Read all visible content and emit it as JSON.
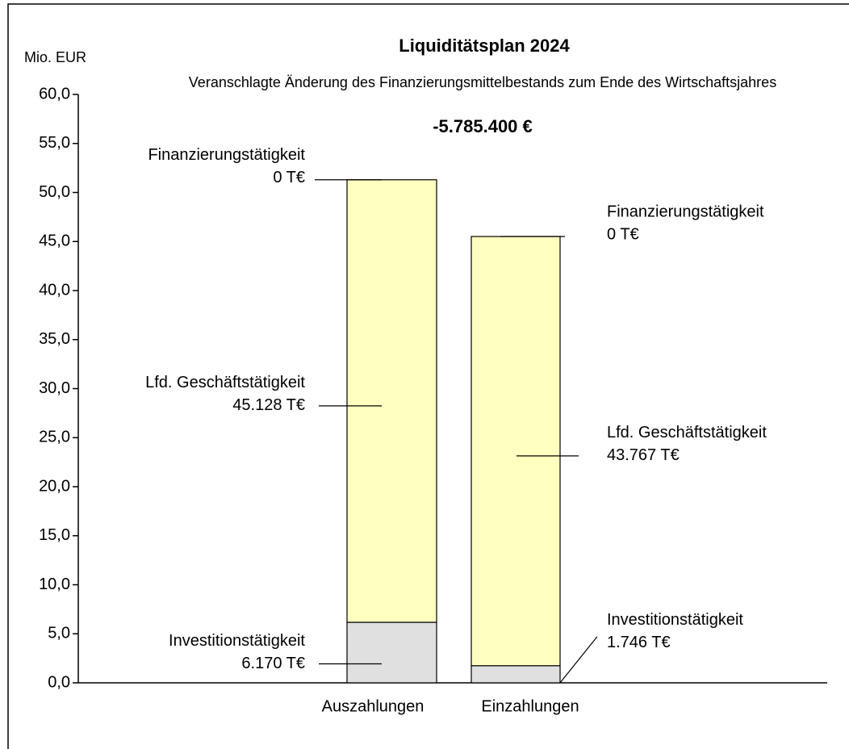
{
  "chart_data": {
    "type": "stacked_bar",
    "title": "Liquiditätsplan 2024",
    "subtitle": "Veranschlagte Änderung des Finanzierungsmittelbestands zum Ende des Wirtschaftsjahres",
    "annotation": "-5.785.400 €",
    "y_label": "Mio. EUR",
    "categories": [
      "Auszahlungen",
      "Einzahlungen"
    ],
    "series": [
      {
        "name": "Investitionstätigkeit",
        "color": "#e0e0e0",
        "values": [
          6.17,
          1.746
        ],
        "value_labels": [
          "6.170 T€",
          "1.746 T€"
        ]
      },
      {
        "name": "Lfd. Geschäftstätigkeit",
        "color": "#ffffc0",
        "values": [
          45.128,
          43.767
        ],
        "value_labels": [
          "45.128 T€",
          "43.767 T€"
        ]
      },
      {
        "name": "Finanzierungstätigkeit",
        "color": "#ffffc0",
        "values": [
          0,
          0
        ],
        "value_labels": [
          "0 T€",
          "0 T€"
        ]
      }
    ],
    "ylim": [
      0,
      60
    ],
    "yticks": [
      {
        "value": 0,
        "label": "0,0"
      },
      {
        "value": 5,
        "label": "5,0"
      },
      {
        "value": 10,
        "label": "10,0"
      },
      {
        "value": 15,
        "label": "15,0"
      },
      {
        "value": 20,
        "label": "20,0"
      },
      {
        "value": 25,
        "label": "25,0"
      },
      {
        "value": 30,
        "label": "30,0"
      },
      {
        "value": 35,
        "label": "35,0"
      },
      {
        "value": 40,
        "label": "40,0"
      },
      {
        "value": 45,
        "label": "45,0"
      },
      {
        "value": 50,
        "label": "50,0"
      },
      {
        "value": 55,
        "label": "55,0"
      },
      {
        "value": 60,
        "label": "60,0"
      }
    ],
    "grid": false
  }
}
